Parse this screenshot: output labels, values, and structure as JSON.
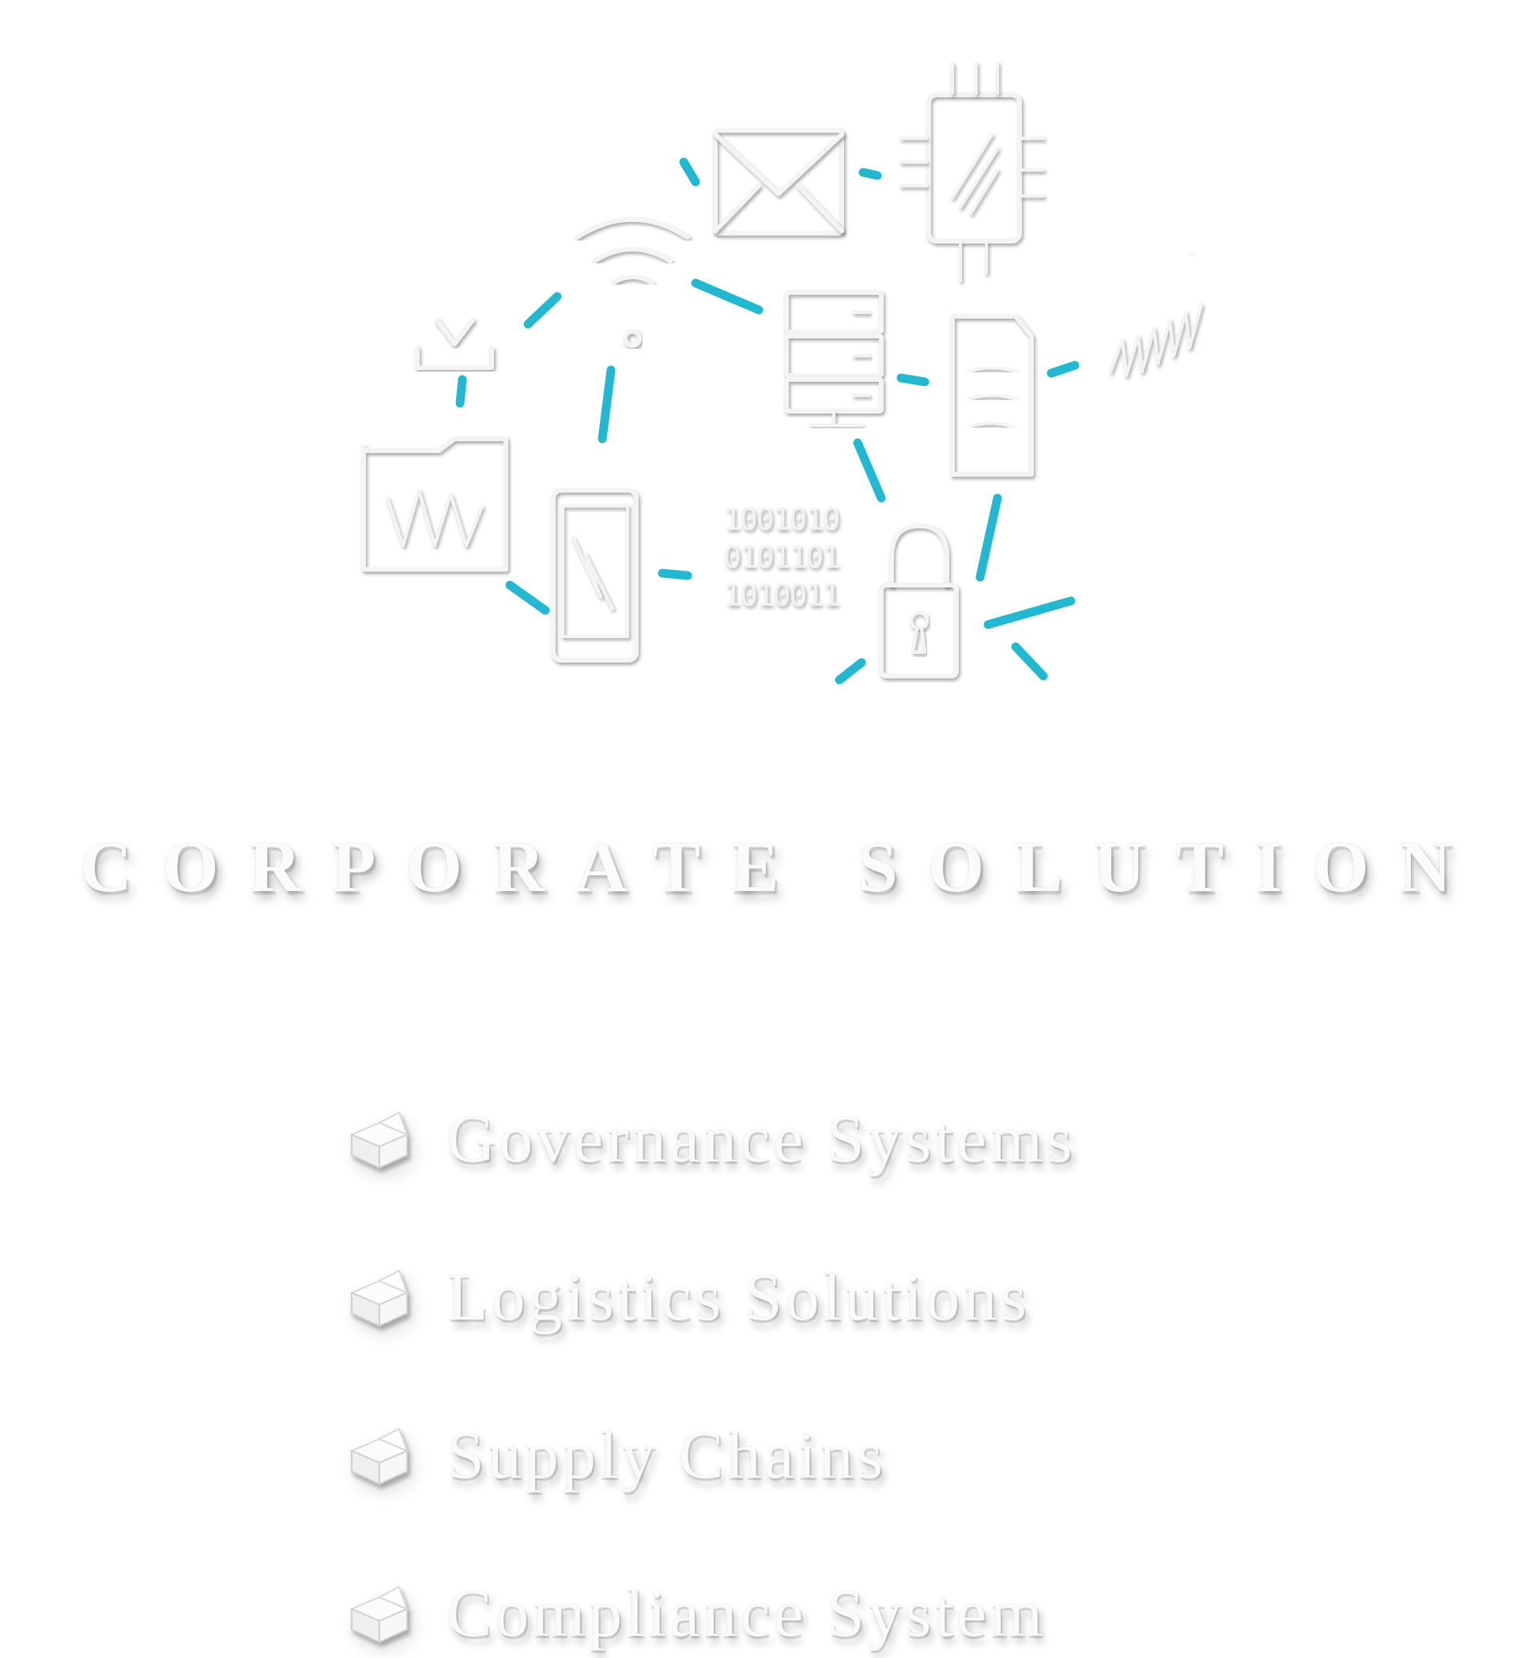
{
  "heading": "CORPORATE SOLUTION",
  "features": [
    {
      "label": "Governance Systems"
    },
    {
      "label": "Logistics Solutions"
    },
    {
      "label": "Supply Chains"
    },
    {
      "label": "Compliance System"
    }
  ],
  "binary": [
    "1001010",
    "0101101",
    "1010011"
  ],
  "colors": {
    "accent": "#22b8d2",
    "sketch": "#f4f4f4",
    "background": "#ffffff"
  },
  "icons": [
    "download-icon",
    "wifi-icon",
    "mail-icon",
    "chip-icon",
    "server-icon",
    "document-icon",
    "spring-icon",
    "folder-icon",
    "smartphone-icon",
    "binary-icon",
    "padlock-icon",
    "cube-bullet-icon"
  ]
}
